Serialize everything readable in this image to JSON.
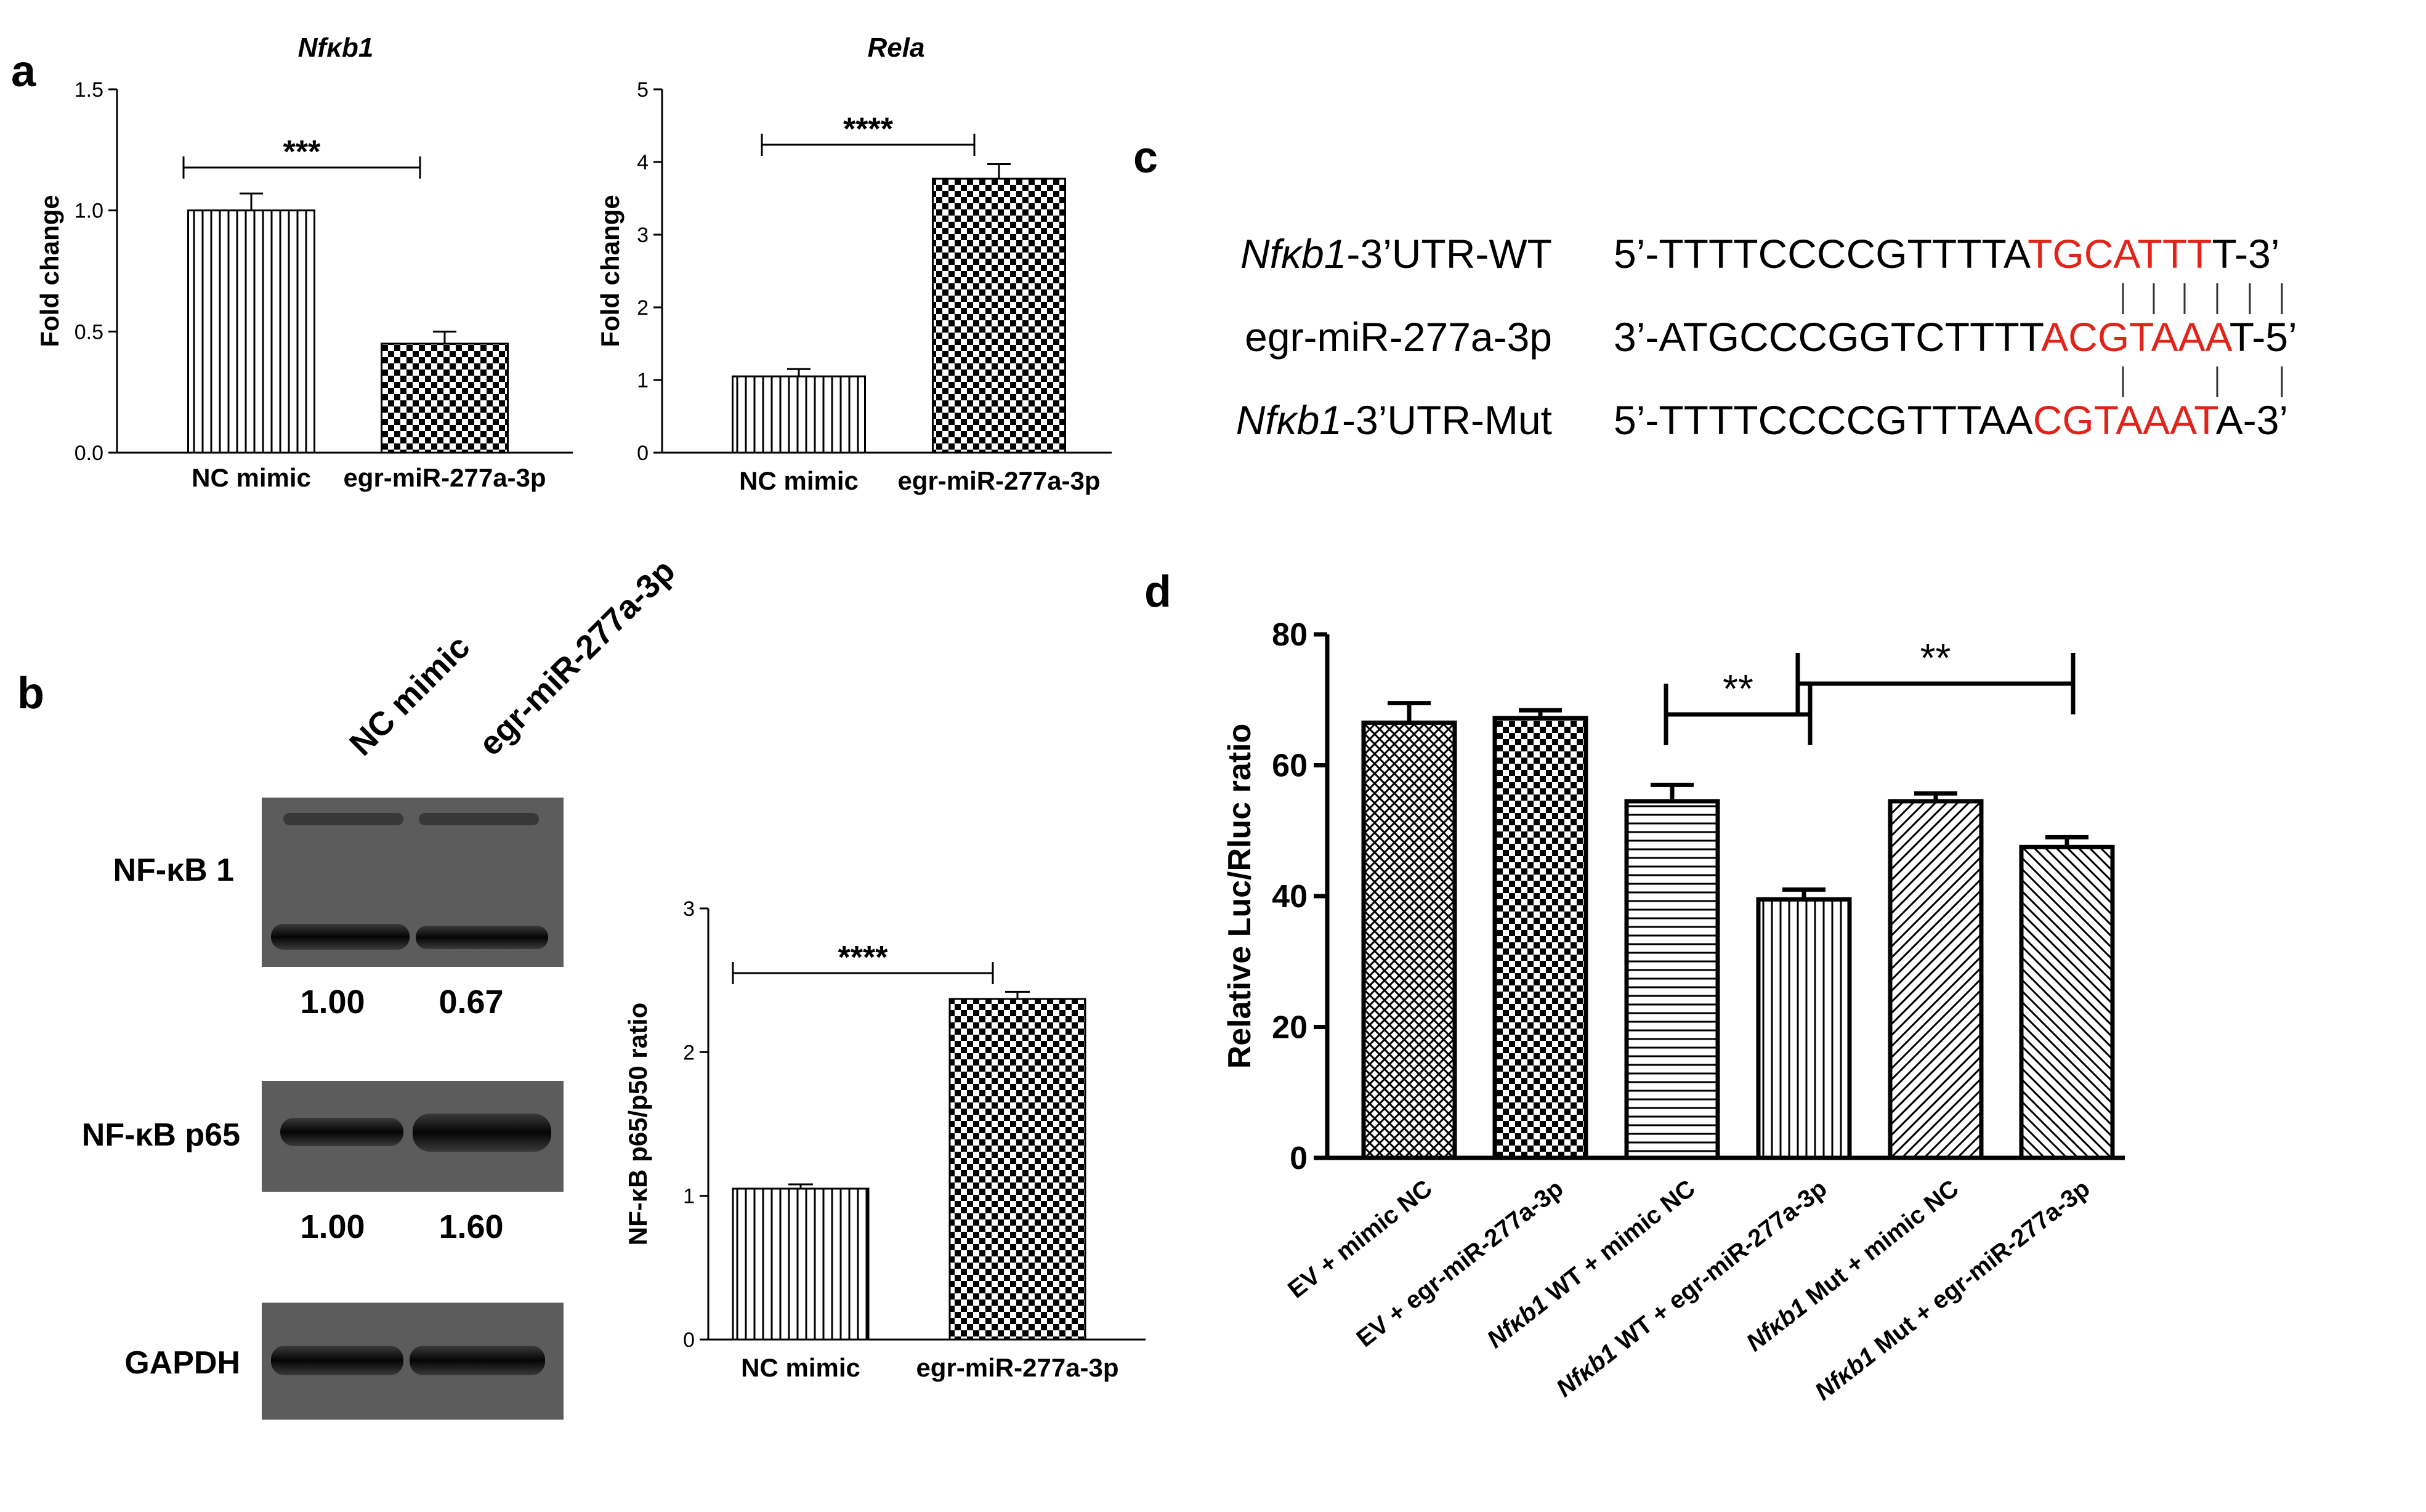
{
  "panels": {
    "a": "a",
    "b": "b",
    "c": "c",
    "d": "d"
  },
  "chart_data": [
    {
      "id": "a1",
      "type": "bar",
      "title": "Nfκb1",
      "categories": [
        "NC mimic",
        "egr-miR-277a-3p"
      ],
      "values": [
        1.0,
        0.45
      ],
      "errors": [
        0.07,
        0.05
      ],
      "patterns": [
        "vlines",
        "checker"
      ],
      "ylabel": "Fold change",
      "ylim": [
        0,
        1.5
      ],
      "yticks": [
        "0.0",
        "0.5",
        "1.0",
        "1.5"
      ],
      "significance": [
        {
          "from": 0,
          "to": 1,
          "label": "***"
        }
      ]
    },
    {
      "id": "a2",
      "type": "bar",
      "title": "Rela",
      "categories": [
        "NC mimic",
        "egr-miR-277a-3p"
      ],
      "values": [
        1.05,
        3.77
      ],
      "errors": [
        0.1,
        0.2
      ],
      "patterns": [
        "vlines",
        "checker"
      ],
      "ylabel": "Fold change",
      "ylim": [
        0,
        5
      ],
      "yticks": [
        "0",
        "1",
        "2",
        "3",
        "4",
        "5"
      ],
      "significance": [
        {
          "from": 0,
          "to": 1,
          "label": "****"
        }
      ]
    },
    {
      "id": "b",
      "type": "bar",
      "title": "",
      "categories": [
        "NC mimic",
        "egr-miR-277a-3p"
      ],
      "values": [
        1.05,
        2.37
      ],
      "errors": [
        0.03,
        0.05
      ],
      "patterns": [
        "vlines",
        "checker"
      ],
      "ylabel": "NF-κB p65/p50 ratio",
      "ylim": [
        0,
        3
      ],
      "yticks": [
        "0",
        "1",
        "2",
        "3"
      ],
      "significance": [
        {
          "from": 0,
          "to": 1,
          "label": "****"
        }
      ]
    },
    {
      "id": "d",
      "type": "bar",
      "title": "",
      "categories": [
        {
          "italic": "",
          "rest": "EV + mimic NC"
        },
        {
          "italic": "",
          "rest": "EV + egr-miR-277a-3p"
        },
        {
          "italic": "Nfκb1",
          "rest": " WT + mimic NC"
        },
        {
          "italic": "Nfκb1",
          "rest": " WT + egr-miR-277a-3p"
        },
        {
          "italic": "Nfκb1",
          "rest": " Mut + mimic NC"
        },
        {
          "italic": "Nfκb1",
          "rest": " Mut + egr-miR-277a-3p"
        }
      ],
      "values": [
        66.5,
        67.2,
        54.5,
        39.5,
        54.5,
        47.5
      ],
      "errors": [
        3.0,
        1.2,
        2.5,
        1.5,
        1.2,
        1.5
      ],
      "patterns": [
        "diamond",
        "checker",
        "hlines",
        "vlines",
        "diagfwd",
        "diagback"
      ],
      "ylabel": "Relative Luc/Rluc ratio",
      "ylim": [
        0,
        80
      ],
      "yticks": [
        "0",
        "20",
        "40",
        "60",
        "80"
      ],
      "significance": [
        {
          "from": 2,
          "to": 3,
          "label": "**"
        },
        {
          "from": 3,
          "to": 5,
          "label": "**"
        }
      ]
    }
  ],
  "sequences": [
    {
      "label_italic": "Nfκb1",
      "label_rest": "-3’UTR-WT",
      "prefix": "5’-TTTTCCCCGTTTTA",
      "red": "TGCATTT",
      "suffix": "T-3’"
    },
    {
      "label_italic": "",
      "label_rest": "egr-miR-277a-3p",
      "prefix": "3’-ATGCCCGGTCTTTT",
      "red": "ACGTAAA",
      "suffix": "T-5’"
    },
    {
      "label_italic": "Nfκb1",
      "label_rest": "-3’UTR-Mut",
      "prefix": "5’-TTTTCCCCGTTTAA",
      "red": "CGTAAAT",
      "suffix": "A-3’"
    }
  ],
  "blot": {
    "lanes": [
      "NC mimic",
      "egr-miR-277a-3p"
    ],
    "rows": [
      {
        "label": "NF-κB 1",
        "values": [
          "1.00",
          "0.67"
        ]
      },
      {
        "label": "NF-κB p65",
        "values": [
          "1.00",
          "1.60"
        ]
      },
      {
        "label": "GAPDH",
        "values": []
      }
    ]
  }
}
